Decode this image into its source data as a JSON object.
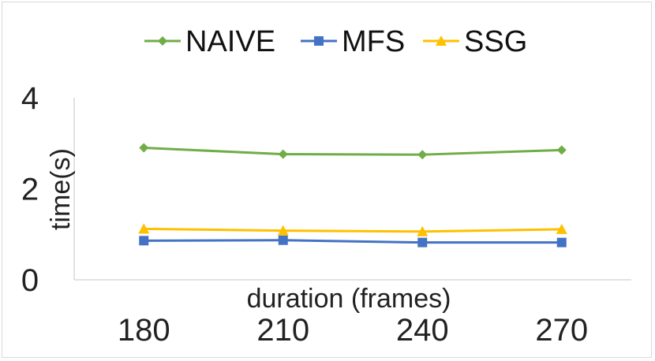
{
  "chart_data": {
    "type": "line",
    "title": "",
    "xlabel": "duration (frames)",
    "ylabel": "time(s)",
    "categories": [
      "180",
      "210",
      "240",
      "270"
    ],
    "ylim": [
      0,
      4
    ],
    "yticks": [
      "0",
      "2",
      "4"
    ],
    "grid": false,
    "legend_position": "top",
    "series": [
      {
        "name": "NAIVE",
        "color": "#70AD47",
        "marker": "diamond",
        "values": [
          2.9,
          2.76,
          2.75,
          2.85
        ]
      },
      {
        "name": "MFS",
        "color": "#4472C4",
        "marker": "square",
        "values": [
          0.86,
          0.87,
          0.82,
          0.82
        ]
      },
      {
        "name": "SSG",
        "color": "#FFC000",
        "marker": "triangle",
        "values": [
          1.12,
          1.08,
          1.06,
          1.11
        ]
      }
    ]
  }
}
